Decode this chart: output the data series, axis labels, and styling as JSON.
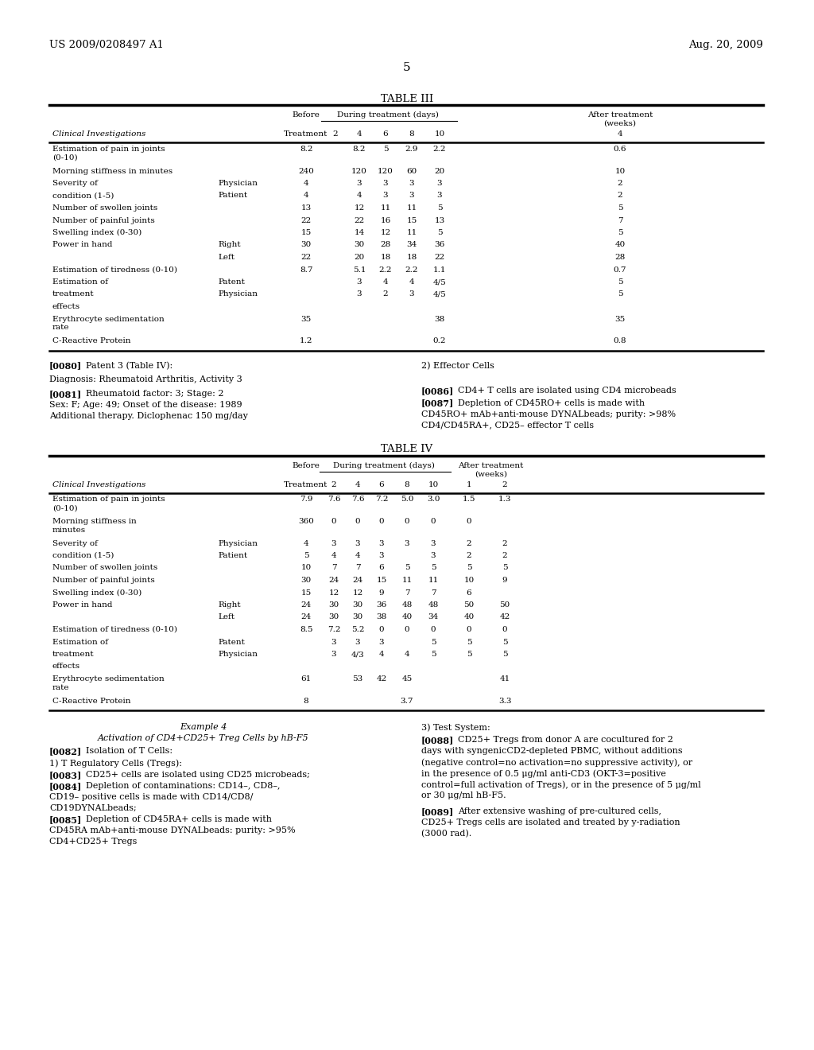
{
  "background_color": "#ffffff",
  "page_number": "5",
  "header_left": "US 2009/0208497 A1",
  "header_right": "Aug. 20, 2009",
  "table3_title": "TABLE III",
  "table4_title": "TABLE IV",
  "t3_rows": [
    [
      "Estimation of pain in joints\n(0-10)",
      "",
      "8.2",
      "8.2",
      "5",
      "2.9",
      "2.2",
      "",
      "0.6"
    ],
    [
      "Morning stiffness in minutes",
      "",
      "240",
      "120",
      "120",
      "60",
      "20",
      "",
      "10"
    ],
    [
      "Severity of",
      "Physician",
      "4",
      "3",
      "3",
      "3",
      "3",
      "",
      "2"
    ],
    [
      "condition (1-5)",
      "Patient",
      "4",
      "4",
      "3",
      "3",
      "3",
      "",
      "2"
    ],
    [
      "Number of swollen joints",
      "",
      "13",
      "12",
      "11",
      "11",
      "5",
      "",
      "5"
    ],
    [
      "Number of painful joints",
      "",
      "22",
      "22",
      "16",
      "15",
      "13",
      "",
      "7"
    ],
    [
      "Swelling index (0-30)",
      "",
      "15",
      "14",
      "12",
      "11",
      "5",
      "",
      "5"
    ],
    [
      "Power in hand",
      "Right",
      "30",
      "30",
      "28",
      "34",
      "36",
      "",
      "40"
    ],
    [
      "",
      "Left",
      "22",
      "20",
      "18",
      "18",
      "22",
      "",
      "28"
    ],
    [
      "Estimation of tiredness (0-10)",
      "",
      "8.7",
      "5.1",
      "2.2",
      "2.2",
      "1.1",
      "",
      "0.7"
    ],
    [
      "Estimation of",
      "Patent",
      "",
      "3",
      "4",
      "4",
      "4/5",
      "",
      "5"
    ],
    [
      "treatment",
      "Physician",
      "",
      "3",
      "2",
      "3",
      "4/5",
      "",
      "5"
    ],
    [
      "effects",
      "",
      "",
      "",
      "",
      "",
      "",
      "",
      ""
    ],
    [
      "Erythrocyte sedimentation\nrate",
      "",
      "35",
      "",
      "",
      "",
      "38",
      "",
      "35"
    ],
    [
      "C-Reactive Protein",
      "",
      "1.2",
      "",
      "",
      "",
      "0.2",
      "",
      "0.8"
    ]
  ],
  "t4_rows": [
    [
      "Estimation of pain in joints\n(0-10)",
      "",
      "7.9",
      "7.6",
      "7.6",
      "7.2",
      "5.0",
      "3.0",
      "1.5",
      "1.3"
    ],
    [
      "Morning stiffness in\nminutes",
      "",
      "360",
      "0",
      "0",
      "0",
      "0",
      "0",
      "0",
      ""
    ],
    [
      "Severity of",
      "Physician",
      "4",
      "3",
      "3",
      "3",
      "3",
      "3",
      "2",
      "2"
    ],
    [
      "condition (1-5)",
      "Patient",
      "5",
      "4",
      "4",
      "3",
      "",
      "3",
      "2",
      "2"
    ],
    [
      "Number of swollen joints",
      "",
      "10",
      "7",
      "7",
      "6",
      "5",
      "5",
      "5",
      "5"
    ],
    [
      "Number of painful joints",
      "",
      "30",
      "24",
      "24",
      "15",
      "11",
      "11",
      "10",
      "9"
    ],
    [
      "Swelling index (0-30)",
      "",
      "15",
      "12",
      "12",
      "9",
      "7",
      "7",
      "6",
      ""
    ],
    [
      "Power in hand",
      "Right",
      "24",
      "30",
      "30",
      "36",
      "48",
      "48",
      "50",
      "50"
    ],
    [
      "",
      "Left",
      "24",
      "30",
      "30",
      "38",
      "40",
      "34",
      "40",
      "42"
    ],
    [
      "Estimation of tiredness (0-10)",
      "",
      "8.5",
      "7.2",
      "5.2",
      "0",
      "0",
      "0",
      "0",
      "0"
    ],
    [
      "Estimation of",
      "Patent",
      "",
      "3",
      "3",
      "3",
      "",
      "5",
      "5",
      "5"
    ],
    [
      "treatment",
      "Physician",
      "",
      "3",
      "4/3",
      "4",
      "4",
      "5",
      "5",
      "5"
    ],
    [
      "effects",
      "",
      "",
      "",
      "",
      "",
      "",
      "",
      "",
      ""
    ],
    [
      "Erythrocyte sedimentation\nrate",
      "",
      "61",
      "",
      "53",
      "42",
      "45",
      "",
      "",
      "41"
    ],
    [
      "C-Reactive Protein",
      "",
      "8",
      "",
      "",
      "",
      "3.7",
      "",
      "",
      "3.3"
    ]
  ]
}
